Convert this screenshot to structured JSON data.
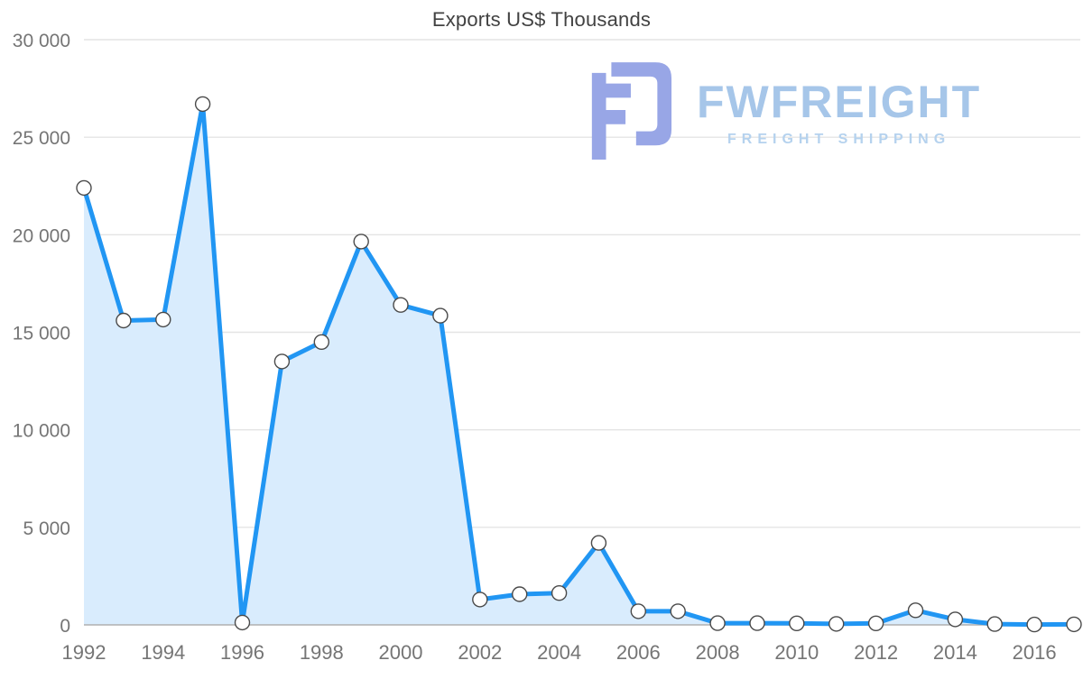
{
  "title": "Exports US$ Thousands",
  "watermark": {
    "brand": "FWFREIGHT",
    "tagline": "FREIGHT SHIPPING"
  },
  "colors": {
    "line": "#2196f3",
    "fill": "#d9ecfd",
    "grid": "#e4e4e4",
    "axis": "#b0b0b0",
    "tick_label": "#757575",
    "title": "#424242",
    "marker_fill": "#ffffff",
    "marker_stroke": "#4a4a4a",
    "logo": "#98a6e6",
    "brand_text": "#a6c6e9",
    "tagline_text": "#b5d2ee"
  },
  "chart_data": {
    "type": "area",
    "title": "Exports US$ Thousands",
    "xlabel": "",
    "ylabel": "",
    "x": [
      1992,
      1993,
      1994,
      1995,
      1996,
      1997,
      1998,
      1999,
      2000,
      2001,
      2002,
      2003,
      2004,
      2005,
      2006,
      2007,
      2008,
      2009,
      2010,
      2011,
      2012,
      2013,
      2014,
      2015,
      2016,
      2017
    ],
    "values": [
      22400,
      15600,
      15650,
      26700,
      120,
      13500,
      14500,
      19650,
      16400,
      15850,
      1300,
      1570,
      1630,
      4200,
      700,
      700,
      90,
      90,
      80,
      50,
      80,
      750,
      280,
      40,
      20,
      30
    ],
    "ylim": [
      0,
      30000
    ],
    "ytick_step": 5000,
    "ytick_labels": [
      "0",
      "5 000",
      "10 000",
      "15 000",
      "20 000",
      "25 000",
      "30 000"
    ],
    "xtick_labels": [
      "1992",
      "1994",
      "1996",
      "1998",
      "2000",
      "2002",
      "2004",
      "2006",
      "2008",
      "2010",
      "2012",
      "2014",
      "2016"
    ],
    "grid": "horizontal",
    "legend": "none",
    "marker": "circle"
  }
}
